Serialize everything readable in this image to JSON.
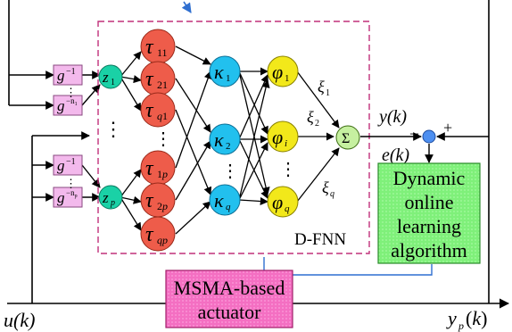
{
  "labels": {
    "dfnn": "D-FNN",
    "learning_block": [
      "Dynamic",
      "online",
      "learning",
      "algorithm"
    ],
    "actuator_block": [
      "MSMA-based",
      "actuator"
    ],
    "input": "u(k)",
    "output": "y_p(k)",
    "model_output": "y(k)",
    "error": "e(k)",
    "minus": "_",
    "plus": "+",
    "sum_symbol": "Σ",
    "dots": "⋮"
  },
  "delay_blocks": [
    {
      "base": "g",
      "exp": "−1"
    },
    {
      "base": "g",
      "exp": "−n_1"
    },
    {
      "base": "g",
      "exp": "−1"
    },
    {
      "base": "g",
      "exp": "−n_p"
    }
  ],
  "input_nodes": [
    {
      "sym": "z",
      "sub": "1"
    },
    {
      "sym": "z",
      "sub": "p"
    }
  ],
  "membership_nodes": [
    {
      "sym": "τ",
      "sub": "11"
    },
    {
      "sym": "τ",
      "sub": "21"
    },
    {
      "sym": "τ",
      "sub": "q1"
    },
    {
      "sym": "τ",
      "sub": "1p"
    },
    {
      "sym": "τ",
      "sub": "2p"
    },
    {
      "sym": "τ",
      "sub": "qp"
    }
  ],
  "rule_nodes": [
    {
      "sym": "κ",
      "sub": "1"
    },
    {
      "sym": "κ",
      "sub": "2"
    },
    {
      "sym": "κ",
      "sub": "q"
    }
  ],
  "normalization_nodes": [
    {
      "sym": "φ",
      "sub": "1"
    },
    {
      "sym": "φ",
      "sub": "i"
    },
    {
      "sym": "φ",
      "sub": "q"
    }
  ],
  "weights": [
    {
      "sym": "ξ",
      "sub": "1"
    },
    {
      "sym": "ξ",
      "sub": "2"
    },
    {
      "sym": "ξ",
      "sub": "q"
    }
  ],
  "colors": {
    "input_node": "#1ad1a6",
    "membership_node": "#ee5c4a",
    "rule_node": "#22c0ee",
    "norm_node": "#f2e81a",
    "sum_node": "#c6f0a0",
    "delay_block": "#f3b9ec",
    "learning_block": "#7ff07a",
    "actuator_block": "#f46fc2",
    "dfnn_border": "#c0307a",
    "feedback_line": "#2f6fd0",
    "comparator": "#4d8ff0"
  }
}
